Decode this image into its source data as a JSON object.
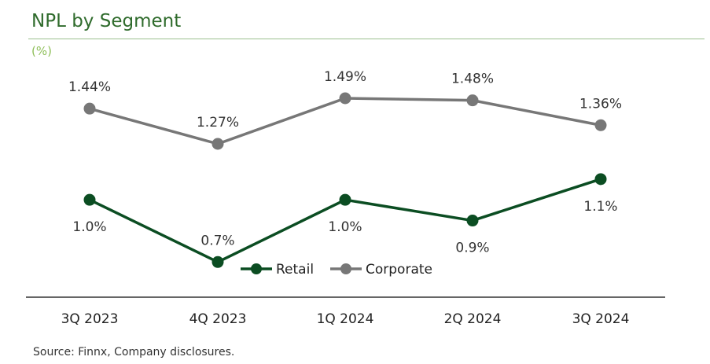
{
  "title": "NPL by Segment",
  "unit_label": "(%)",
  "source": "Source: Finnx, Company disclosures.",
  "colors": {
    "retail": "#0b4d22",
    "corporate": "#777777",
    "title": "#2f6b2c",
    "unit": "#8fbf5a"
  },
  "chart_data": {
    "type": "line",
    "title": "NPL by Segment",
    "ylabel": "(%)",
    "xlabel": "",
    "categories": [
      "3Q 2023",
      "4Q 2023",
      "1Q 2024",
      "2Q 2024",
      "3Q 2024"
    ],
    "series": [
      {
        "name": "Retail",
        "values": [
          1.0,
          0.7,
          1.0,
          0.9,
          1.1
        ],
        "labels": [
          "1.0%",
          "0.7%",
          "1.0%",
          "0.9%",
          "1.1%"
        ]
      },
      {
        "name": "Corporate",
        "values": [
          1.44,
          1.27,
          1.49,
          1.48,
          1.36
        ],
        "labels": [
          "1.44%",
          "1.27%",
          "1.49%",
          "1.48%",
          "1.36%"
        ]
      }
    ],
    "legend": [
      "Retail",
      "Corporate"
    ],
    "legend_position": "bottom",
    "grid": false,
    "ylim": [
      0.5,
      1.6
    ]
  }
}
